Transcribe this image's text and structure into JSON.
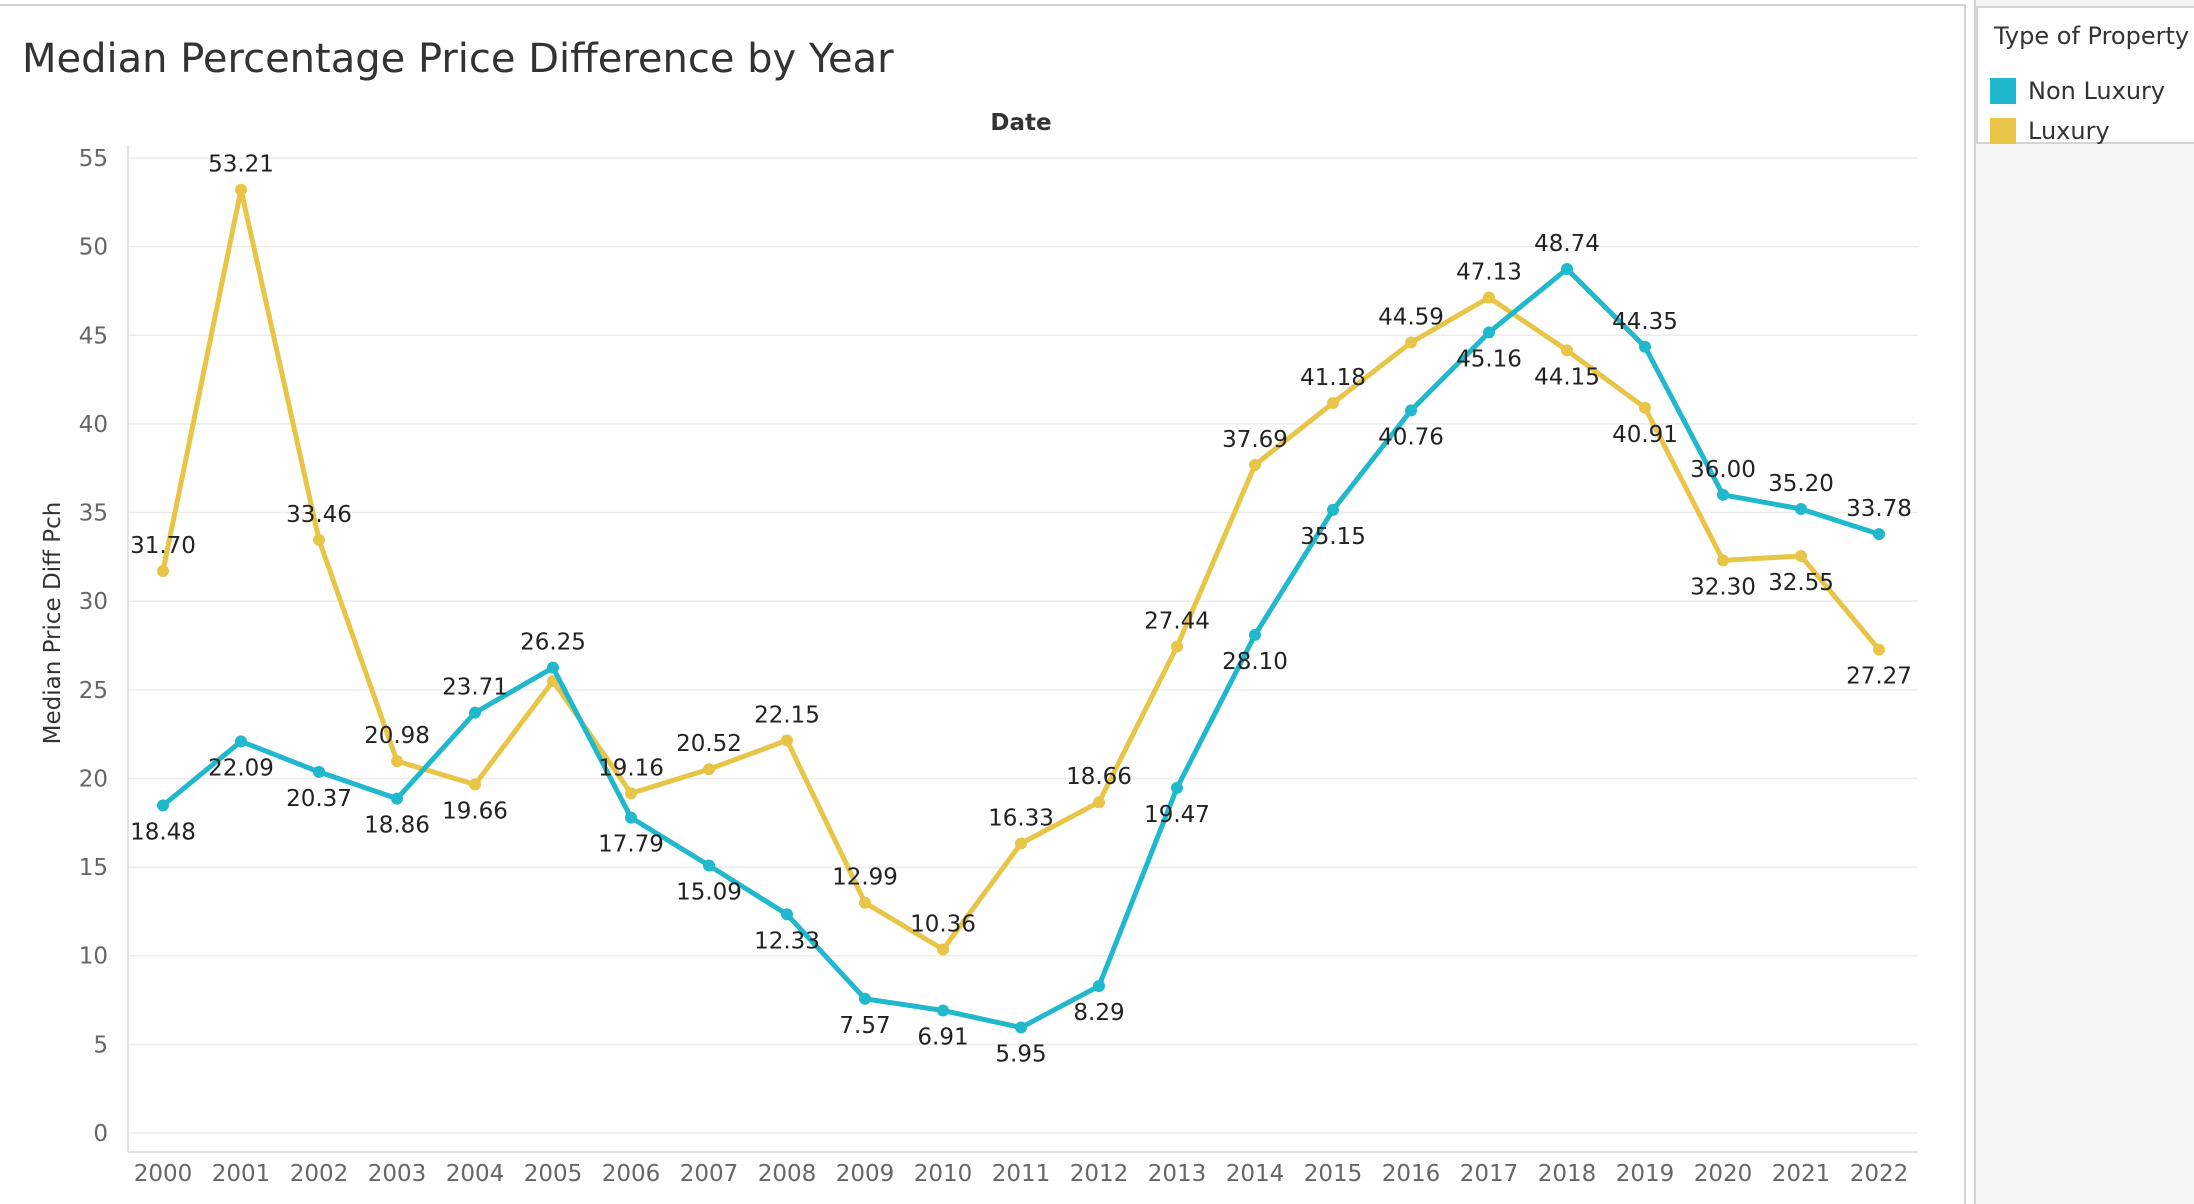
{
  "title": "Median Percentage Price Difference by Year",
  "legend": {
    "title": "Type of Property",
    "items": [
      {
        "label": "Non Luxury",
        "color": "#1fb8cd"
      },
      {
        "label": "Luxury",
        "color": "#e8c547"
      }
    ]
  },
  "chart_data": {
    "type": "line",
    "title": "Median Percentage Price Difference by Year",
    "xlabel": "Date",
    "ylabel": "Median Price Diff Pch",
    "x": [
      "2000",
      "2001",
      "2002",
      "2003",
      "2004",
      "2005",
      "2006",
      "2007",
      "2008",
      "2009",
      "2010",
      "2011",
      "2012",
      "2013",
      "2014",
      "2015",
      "2016",
      "2017",
      "2018",
      "2019",
      "2020",
      "2021",
      "2022"
    ],
    "ylim": [
      0,
      55
    ],
    "yticks": [
      0,
      5,
      10,
      15,
      20,
      25,
      30,
      35,
      40,
      45,
      50,
      55
    ],
    "grid": "horizontal",
    "legend_position": "top-right",
    "series": [
      {
        "name": "Non Luxury",
        "color": "#1fb8cd",
        "values": [
          18.48,
          22.09,
          20.37,
          18.86,
          23.71,
          26.25,
          17.79,
          15.09,
          12.33,
          7.57,
          6.91,
          5.95,
          8.29,
          19.47,
          28.1,
          35.15,
          40.76,
          45.16,
          48.74,
          44.35,
          36.0,
          35.2,
          33.78
        ],
        "labels": [
          "18.48",
          "22.09",
          "20.37",
          "18.86",
          "23.71",
          "26.25",
          "17.79",
          "15.09",
          "12.33",
          "7.57",
          "6.91",
          "5.95",
          "8.29",
          "19.47",
          "28.10",
          "35.15",
          "40.76",
          "45.16",
          "48.74",
          "44.35",
          "36.00",
          "35.20",
          "33.78"
        ]
      },
      {
        "name": "Luxury",
        "color": "#e8c547",
        "values": [
          31.7,
          53.21,
          33.46,
          20.98,
          19.66,
          25.5,
          19.16,
          20.52,
          22.15,
          12.99,
          10.36,
          16.33,
          18.66,
          27.44,
          37.69,
          41.18,
          44.59,
          47.13,
          44.15,
          40.91,
          32.3,
          32.55,
          27.27
        ],
        "labels": [
          "31.70",
          "53.21",
          "33.46",
          "20.98",
          "19.66",
          "",
          "19.16",
          "20.52",
          "22.15",
          "12.99",
          "10.36",
          "16.33",
          "18.66",
          "27.44",
          "37.69",
          "41.18",
          "44.59",
          "47.13",
          "44.15",
          "40.91",
          "32.30",
          "32.55",
          "27.27"
        ]
      }
    ]
  }
}
